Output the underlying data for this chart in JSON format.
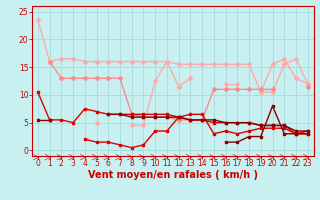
{
  "title": "",
  "xlabel": "Vent moyen/en rafales ( km/h )",
  "xlim": [
    -0.5,
    23.5
  ],
  "ylim": [
    -1,
    26
  ],
  "background_color": "#c8f0f0",
  "grid_color": "#aadddd",
  "xticks": [
    0,
    1,
    2,
    3,
    4,
    5,
    6,
    7,
    8,
    9,
    10,
    11,
    12,
    13,
    14,
    15,
    16,
    17,
    18,
    19,
    20,
    21,
    22,
    23
  ],
  "yticks": [
    0,
    5,
    10,
    15,
    20,
    25
  ],
  "series": [
    {
      "x": [
        0,
        1,
        2,
        3,
        4,
        5,
        6,
        7,
        8,
        9,
        10,
        11,
        12,
        13,
        14,
        15,
        16,
        17,
        18,
        19,
        20,
        21,
        22,
        23
      ],
      "y": [
        23.5,
        16.0,
        16.5,
        16.5,
        16.0,
        16.0,
        16.0,
        16.0,
        16.0,
        16.0,
        16.0,
        16.0,
        15.5,
        15.5,
        15.5,
        15.5,
        15.5,
        15.5,
        15.5,
        10.5,
        10.5,
        15.5,
        16.5,
        12.0
      ],
      "color": "#ffaaaa",
      "marker": "D",
      "markersize": 2,
      "linewidth": 1.0
    },
    {
      "x": [
        0,
        1,
        2,
        3,
        4,
        5,
        6,
        7,
        8,
        9,
        10,
        11,
        12,
        13,
        14,
        15,
        16,
        17,
        18,
        19,
        20,
        21,
        22,
        23
      ],
      "y": [
        null,
        null,
        13.0,
        null,
        null,
        5.0,
        null,
        null,
        4.5,
        4.5,
        12.5,
        16.0,
        11.5,
        13.0,
        null,
        null,
        12.0,
        12.0,
        null,
        10.5,
        15.5,
        16.5,
        13.0,
        12.0
      ],
      "color": "#ffaaaa",
      "marker": "D",
      "markersize": 2,
      "linewidth": 1.0
    },
    {
      "x": [
        0,
        1,
        2,
        3,
        4,
        5,
        6,
        7,
        8,
        9,
        10,
        11,
        12,
        13,
        14,
        15,
        16,
        17,
        18,
        19,
        20,
        21,
        22,
        23
      ],
      "y": [
        null,
        16.0,
        13.0,
        13.0,
        13.0,
        13.0,
        13.0,
        13.0,
        6.5,
        6.0,
        6.0,
        6.0,
        5.5,
        5.5,
        5.5,
        11.0,
        11.0,
        11.0,
        11.0,
        11.0,
        11.0,
        null,
        null,
        11.5
      ],
      "color": "#ff8888",
      "marker": "D",
      "markersize": 2,
      "linewidth": 1.0
    },
    {
      "x": [
        0,
        1,
        2,
        3,
        4,
        5,
        6,
        7,
        8,
        9,
        10,
        11,
        12,
        13,
        14,
        15,
        16,
        17,
        18,
        19,
        20,
        21,
        22,
        23
      ],
      "y": [
        10.5,
        5.5,
        5.5,
        5.0,
        7.5,
        7.0,
        6.5,
        6.5,
        6.5,
        6.5,
        6.5,
        6.5,
        6.0,
        5.5,
        5.5,
        5.0,
        5.0,
        5.0,
        5.0,
        4.5,
        4.5,
        4.5,
        3.0,
        3.0
      ],
      "color": "#dd0000",
      "marker": "s",
      "markersize": 2,
      "linewidth": 1.0
    },
    {
      "x": [
        0,
        1,
        2,
        3,
        4,
        5,
        6,
        7,
        8,
        9,
        10,
        11,
        12,
        13,
        14,
        15,
        16,
        17,
        18,
        19,
        20,
        21,
        22,
        23
      ],
      "y": [
        null,
        5.5,
        null,
        null,
        2.0,
        1.5,
        1.5,
        1.0,
        0.5,
        1.0,
        3.5,
        3.5,
        6.0,
        6.5,
        6.5,
        3.0,
        3.5,
        3.0,
        3.5,
        4.0,
        4.0,
        4.0,
        3.0,
        3.5
      ],
      "color": "#dd0000",
      "marker": "s",
      "markersize": 2,
      "linewidth": 1.0
    },
    {
      "x": [
        0,
        1,
        2,
        3,
        4,
        5,
        6,
        7,
        8,
        9,
        10,
        11,
        12,
        13,
        14,
        15,
        16,
        17,
        18,
        19,
        20,
        21,
        22,
        23
      ],
      "y": [
        5.5,
        5.5,
        null,
        null,
        null,
        null,
        6.5,
        6.5,
        6.0,
        6.0,
        6.0,
        6.0,
        6.0,
        5.5,
        5.5,
        5.5,
        5.0,
        5.0,
        5.0,
        4.5,
        4.5,
        4.5,
        3.5,
        3.5
      ],
      "color": "#880000",
      "marker": "s",
      "markersize": 2,
      "linewidth": 1.0
    },
    {
      "x": [
        0,
        1,
        2,
        3,
        4,
        5,
        6,
        7,
        8,
        9,
        10,
        11,
        12,
        13,
        14,
        15,
        16,
        17,
        18,
        19,
        20,
        21,
        22,
        23
      ],
      "y": [
        null,
        null,
        null,
        null,
        null,
        null,
        null,
        null,
        null,
        null,
        null,
        null,
        null,
        null,
        null,
        null,
        1.5,
        1.5,
        2.5,
        2.5,
        8.0,
        3.0,
        3.0,
        3.0
      ],
      "color": "#880000",
      "marker": "s",
      "markersize": 2,
      "linewidth": 1.0
    }
  ],
  "xlabel_color": "#cc0000",
  "xlabel_fontsize": 7,
  "tick_color": "#cc0000",
  "tick_fontsize": 5.5
}
